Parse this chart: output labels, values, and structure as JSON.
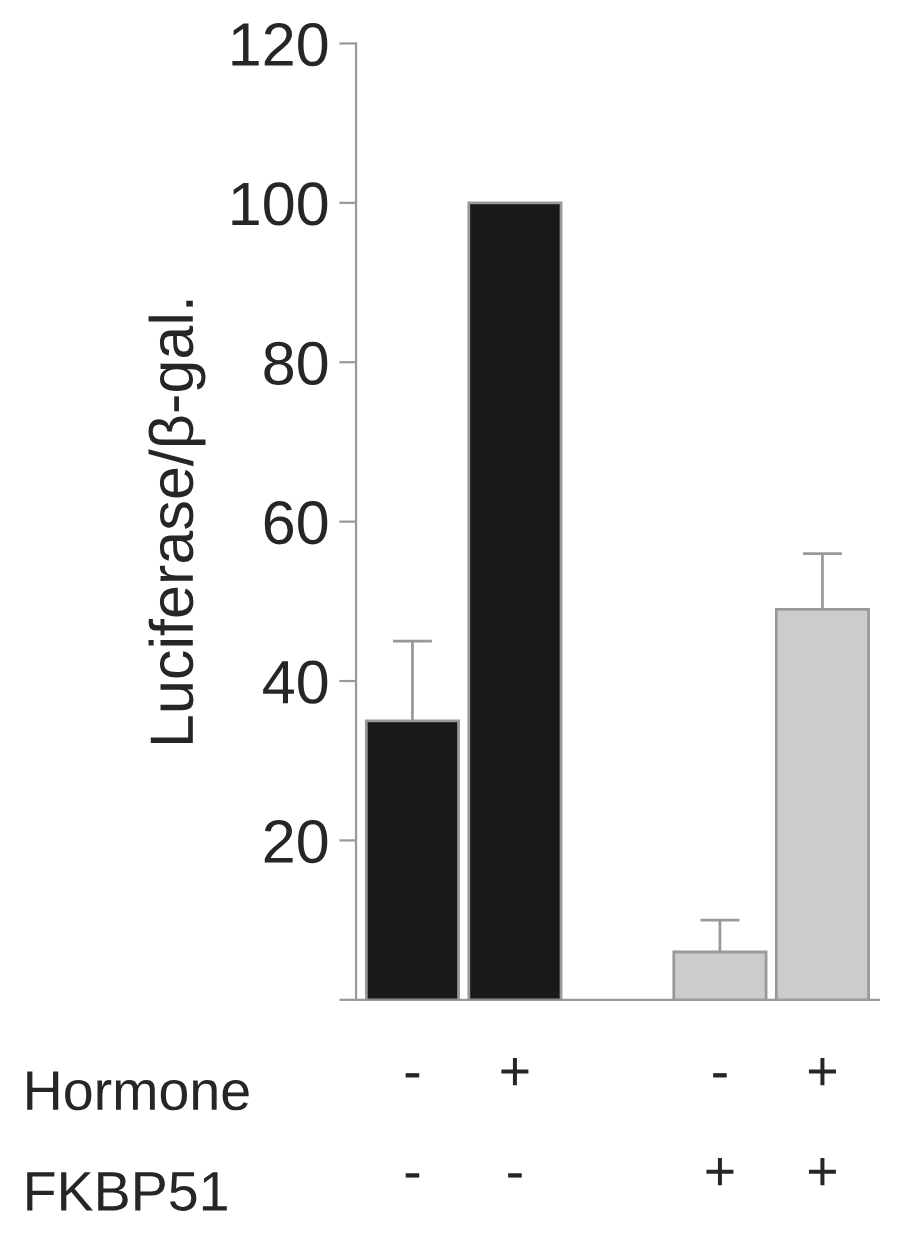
{
  "chart_data": {
    "type": "bar",
    "ylabel": "Luciferase/β-gal.",
    "categories": [
      "-\n-",
      "+\n-",
      null,
      "-\n+",
      "+\n+"
    ],
    "values": [
      35,
      100,
      null,
      6,
      49
    ],
    "errors": [
      10,
      null,
      null,
      4,
      7
    ],
    "colors": [
      "#19191b",
      "#19191b",
      "#cccccc",
      "#cccccc",
      "#cccccc"
    ],
    "ylim": [
      0,
      120
    ],
    "yticks": [
      {
        "value": 0,
        "label": null
      },
      20,
      40,
      60,
      80,
      100,
      120
    ],
    "annotations": [
      "Hormone",
      "FKBP51"
    ]
  }
}
